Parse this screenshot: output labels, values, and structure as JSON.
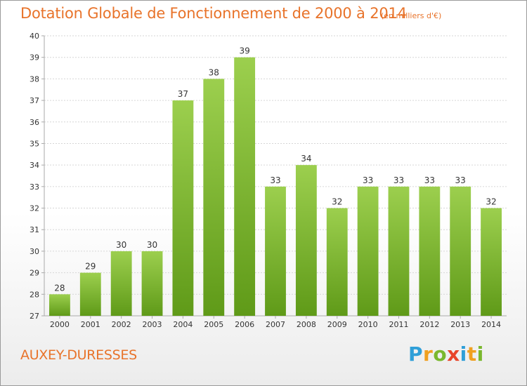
{
  "title": "Dotation Globale de Fonctionnement de 2000 à 2014",
  "subtitle": "(en milliers d'€)",
  "commune": "AUXEY-DURESSES",
  "logo": {
    "text": "Proxiti",
    "letters": [
      {
        "ch": "P",
        "color": "#2f9fd8"
      },
      {
        "ch": "r",
        "color": "#f0a020"
      },
      {
        "ch": "o",
        "color": "#7ab82e"
      },
      {
        "ch": "x",
        "color": "#e8452a"
      },
      {
        "ch": "i",
        "color": "#2f9fd8"
      },
      {
        "ch": "t",
        "color": "#f0a020"
      },
      {
        "ch": "i",
        "color": "#7ab82e"
      }
    ]
  },
  "colors": {
    "title": "#e8732a",
    "bar_top": "#9ccf4e",
    "bar_bottom": "#5f9a18",
    "grid": "#d6d6d6",
    "axis": "#aaaaaa"
  },
  "chart_data": {
    "type": "bar",
    "title": "Dotation Globale de Fonctionnement de 2000 à 2014",
    "subtitle": "(en milliers d'€)",
    "xlabel": "",
    "ylabel": "",
    "categories": [
      "2000",
      "2001",
      "2002",
      "2003",
      "2004",
      "2005",
      "2006",
      "2007",
      "2008",
      "2009",
      "2010",
      "2011",
      "2012",
      "2013",
      "2014"
    ],
    "values": [
      28,
      29,
      30,
      30,
      37,
      38,
      39,
      33,
      34,
      32,
      33,
      33,
      33,
      33,
      32
    ],
    "ylim": [
      27,
      40
    ],
    "yticks": [
      27,
      28,
      29,
      30,
      31,
      32,
      33,
      34,
      35,
      36,
      37,
      38,
      39,
      40
    ],
    "grid": true,
    "legend": "none"
  }
}
